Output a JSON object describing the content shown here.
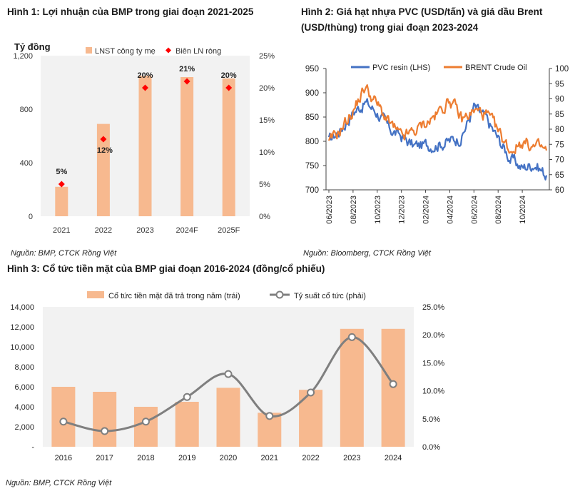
{
  "fig1": {
    "title": "Hình 1: Lợi nhuận của BMP trong giai đoạn 2021-2025",
    "unit_label": "Tỷ đồng",
    "source": "Nguồn: BMP, CTCK Rồng Việt",
    "colors": {
      "bar": "#f7b98f",
      "marker": "#ff0000",
      "plot_bg": "#f2f2f2"
    }
  },
  "fig2": {
    "title_line1": "Hình 2: Giá hạt nhựa PVC (USD/tấn) và giá dầu Brent",
    "title_line2": "(USD/thùng) trong giai đoạn 2023-2024",
    "source": "Nguồn: Bloomberg, CTCK Rồng Việt",
    "colors": {
      "pvc": "#4472c4",
      "brent": "#ed7d31"
    }
  },
  "fig3": {
    "title": "Hình 3: Cổ tức tiền mặt của BMP giai đoạn 2016-2024 (đồng/cổ phiếu)",
    "source": "Nguồn: BMP, CTCK Rồng Việt",
    "colors": {
      "bar": "#f7b98f",
      "line": "#7f7f7f",
      "plot_bg": "#f2f2f2"
    }
  },
  "chart_data": [
    {
      "type": "bar",
      "title": "Hình 1: Lợi nhuận của BMP trong giai đoạn 2021-2025",
      "ylabel": "Tỷ đồng",
      "categories": [
        "2021",
        "2022",
        "2023",
        "2024F",
        "2025F"
      ],
      "ylim": [
        0,
        1200
      ],
      "yticks": [
        "0",
        "400",
        "800",
        "1,200"
      ],
      "y2lim": [
        0,
        25
      ],
      "y2ticks": [
        "0%",
        "5%",
        "10%",
        "15%",
        "20%",
        "25%"
      ],
      "grid": false,
      "legend": "top",
      "series": [
        {
          "name": "LNST công ty mẹ",
          "kind": "bar",
          "axis": "left",
          "values": [
            220,
            690,
            1050,
            1040,
            1030
          ]
        },
        {
          "name": "Biên LN ròng",
          "kind": "scatter",
          "axis": "right",
          "values": [
            5,
            12,
            20,
            21,
            20
          ],
          "labels": [
            "5%",
            "12%",
            "20%",
            "21%",
            "20%"
          ]
        }
      ]
    },
    {
      "type": "line",
      "title": "Hình 2: Giá hạt nhựa PVC (USD/tấn) và giá dầu Brent (USD/thùng) trong giai đoạn 2023-2024",
      "xticks": [
        "06/2023",
        "08/2023",
        "10/2023",
        "12/2023",
        "02/2024",
        "04/2024",
        "06/2024",
        "08/2024",
        "10/2024"
      ],
      "ylim": [
        700,
        950
      ],
      "yticks": [
        "700",
        "750",
        "800",
        "850",
        "900",
        "950"
      ],
      "y2lim": [
        60,
        100
      ],
      "y2ticks": [
        "60",
        "65",
        "70",
        "75",
        "80",
        "85",
        "90",
        "95",
        "100"
      ],
      "grid": false,
      "legend": "top",
      "series": [
        {
          "name": "PVC resin (LHS)",
          "axis": "left",
          "x": [
            "06/2023",
            "07/2023",
            "08/2023",
            "09/2023",
            "10/2023",
            "11/2023",
            "12/2023",
            "01/2024",
            "02/2024",
            "03/2024",
            "04/2024",
            "05/2024",
            "06/2024",
            "07/2024",
            "08/2024",
            "09/2024",
            "10/2024",
            "11/2024",
            "12/2024"
          ],
          "values": [
            800,
            825,
            860,
            880,
            860,
            825,
            810,
            790,
            792,
            795,
            800,
            810,
            870,
            845,
            805,
            765,
            745,
            755,
            730
          ]
        },
        {
          "name": "BRENT Crude Oil",
          "axis": "right",
          "x": [
            "06/2023",
            "07/2023",
            "08/2023",
            "09/2023",
            "10/2023",
            "11/2023",
            "12/2023",
            "01/2024",
            "02/2024",
            "03/2024",
            "04/2024",
            "05/2024",
            "06/2024",
            "07/2024",
            "08/2024",
            "09/2024",
            "10/2024",
            "11/2024",
            "12/2024"
          ],
          "values": [
            75,
            80,
            86,
            94,
            88,
            82,
            77,
            79,
            82,
            85,
            90,
            83,
            86,
            85,
            79,
            73,
            76,
            74,
            73
          ]
        }
      ]
    },
    {
      "type": "bar",
      "title": "Hình 3: Cổ tức tiền mặt của BMP giai đoạn 2016-2024 (đồng/cổ phiếu)",
      "categories": [
        "2016",
        "2017",
        "2018",
        "2019",
        "2020",
        "2021",
        "2022",
        "2023",
        "2024"
      ],
      "ylim": [
        0,
        14000
      ],
      "yticks": [
        "-",
        "2,000",
        "4,000",
        "6,000",
        "8,000",
        "10,000",
        "12,000",
        "14,000"
      ],
      "y2lim": [
        0,
        25
      ],
      "y2ticks": [
        "0.0%",
        "5.0%",
        "10.0%",
        "15.0%",
        "20.0%",
        "25.0%"
      ],
      "grid": false,
      "legend": "top",
      "series": [
        {
          "name": "Cổ tức tiền mặt đã trả trong năm (trái)",
          "kind": "bar",
          "axis": "left",
          "values": [
            6000,
            5500,
            4000,
            4500,
            5900,
            3400,
            5700,
            11800,
            11800
          ]
        },
        {
          "name": "Tỷ suất cổ tức (phải)",
          "kind": "line",
          "axis": "right",
          "values": [
            4.5,
            2.8,
            4.5,
            8.9,
            13.0,
            5.5,
            9.7,
            19.6,
            11.2
          ]
        }
      ]
    }
  ]
}
